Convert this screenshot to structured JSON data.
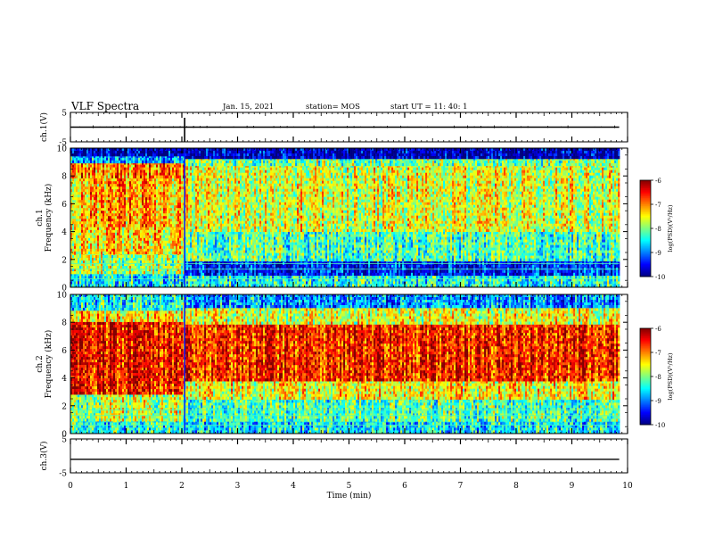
{
  "header": {
    "title": "VLF Spectra",
    "date": "Jan. 15, 2021",
    "station": "station= MOS",
    "start": "start UT = 11: 40: 1"
  },
  "chart_data": {
    "type": "heatmap",
    "xlabel": "Time (min)",
    "xlim": [
      0,
      10
    ],
    "xticks": [
      "0",
      "1",
      "2",
      "3",
      "4",
      "5",
      "6",
      "7",
      "8",
      "9",
      "10"
    ],
    "panels": [
      {
        "id": "ch1-waveform",
        "kind": "line",
        "ylabel": "ch.1(V)",
        "ylim": [
          -5,
          5
        ],
        "yticks": [
          "5",
          "-5"
        ],
        "level": 0
      },
      {
        "id": "ch1-spectrogram",
        "kind": "heatmap",
        "ylabel": "ch.1\nFrequency (kHz)",
        "ylabel_lines": [
          "ch.1",
          "Frequency (kHz)"
        ],
        "ylim": [
          0,
          10
        ],
        "yticks": [
          "0",
          "2",
          "4",
          "6",
          "8",
          "10"
        ],
        "colorbar": {
          "label": "log(PSD)(V²/Hz)",
          "ticks": [
            "-6",
            "-7",
            "-8",
            "-9",
            "-10"
          ],
          "range": [
            -10,
            -6
          ]
        },
        "bands": [
          {
            "t": [
              0,
              2.05
            ],
            "f": [
              0,
              1.0
            ],
            "level": -8.6
          },
          {
            "t": [
              0,
              2.05
            ],
            "f": [
              1.0,
              2.5
            ],
            "level": -7.8
          },
          {
            "t": [
              0,
              2.05
            ],
            "f": [
              2.5,
              4.5
            ],
            "level": -7.4
          },
          {
            "t": [
              0,
              2.05
            ],
            "f": [
              4.5,
              8.0
            ],
            "level": -7.2
          },
          {
            "t": [
              0,
              2.05
            ],
            "f": [
              8.0,
              9.0
            ],
            "level": -7.0
          },
          {
            "t": [
              0,
              2.05
            ],
            "f": [
              9.0,
              9.5
            ],
            "level": -8.8
          },
          {
            "t": [
              0,
              2.05
            ],
            "f": [
              9.5,
              10
            ],
            "level": -9.8
          },
          {
            "t": [
              2.05,
              9.85
            ],
            "f": [
              0,
              1.0
            ],
            "level": -8.4
          },
          {
            "t": [
              2.05,
              9.85
            ],
            "f": [
              1.0,
              2.0
            ],
            "level": -9.4
          },
          {
            "t": [
              2.05,
              9.85
            ],
            "f": [
              2.0,
              4.0
            ],
            "level": -8.2
          },
          {
            "t": [
              2.05,
              9.85
            ],
            "f": [
              4.0,
              8.8
            ],
            "level": -7.6
          },
          {
            "t": [
              2.05,
              9.85
            ],
            "f": [
              8.8,
              9.3
            ],
            "level": -8.0
          },
          {
            "t": [
              2.05,
              9.85
            ],
            "f": [
              9.3,
              10
            ],
            "level": -9.8
          }
        ]
      },
      {
        "id": "ch2-spectrogram",
        "kind": "heatmap",
        "ylabel": "ch.2\nFrequency (kHz)",
        "ylabel_lines": [
          "ch.2",
          "Frequency (kHz)"
        ],
        "ylim": [
          0,
          10
        ],
        "yticks": [
          "0",
          "2",
          "4",
          "6",
          "8",
          "10"
        ],
        "colorbar": {
          "label": "log(PSD)(V²/Hz)",
          "ticks": [
            "-6",
            "-7",
            "-8",
            "-9",
            "-10"
          ],
          "range": [
            -10,
            -6
          ]
        },
        "bands": [
          {
            "t": [
              0,
              2.05
            ],
            "f": [
              0,
              1.0
            ],
            "level": -8.4
          },
          {
            "t": [
              0,
              2.05
            ],
            "f": [
              1.0,
              3.0
            ],
            "level": -7.8
          },
          {
            "t": [
              0,
              2.05
            ],
            "f": [
              3.0,
              8.2
            ],
            "level": -6.5
          },
          {
            "t": [
              0,
              2.05
            ],
            "f": [
              8.2,
              9.0
            ],
            "level": -7.4
          },
          {
            "t": [
              0,
              2.05
            ],
            "f": [
              9.0,
              10
            ],
            "level": -8.4
          },
          {
            "t": [
              2.05,
              9.85
            ],
            "f": [
              0,
              1.0
            ],
            "level": -8.6
          },
          {
            "t": [
              2.05,
              9.85
            ],
            "f": [
              1.0,
              2.6
            ],
            "level": -8.2
          },
          {
            "t": [
              2.05,
              9.85
            ],
            "f": [
              2.6,
              3.8
            ],
            "level": -7.5
          },
          {
            "t": [
              2.05,
              9.85
            ],
            "f": [
              3.8,
              8.0
            ],
            "level": -6.6
          },
          {
            "t": [
              2.05,
              9.85
            ],
            "f": [
              8.0,
              9.2
            ],
            "level": -7.6
          },
          {
            "t": [
              2.05,
              9.85
            ],
            "f": [
              9.2,
              10
            ],
            "level": -8.9
          }
        ]
      },
      {
        "id": "ch3-waveform",
        "kind": "line",
        "ylabel": "ch.3(V)",
        "ylim": [
          -5,
          5
        ],
        "yticks": [
          "5",
          "-5"
        ],
        "level": -1
      }
    ],
    "data_end_min": 9.85,
    "event_min": 2.05
  }
}
